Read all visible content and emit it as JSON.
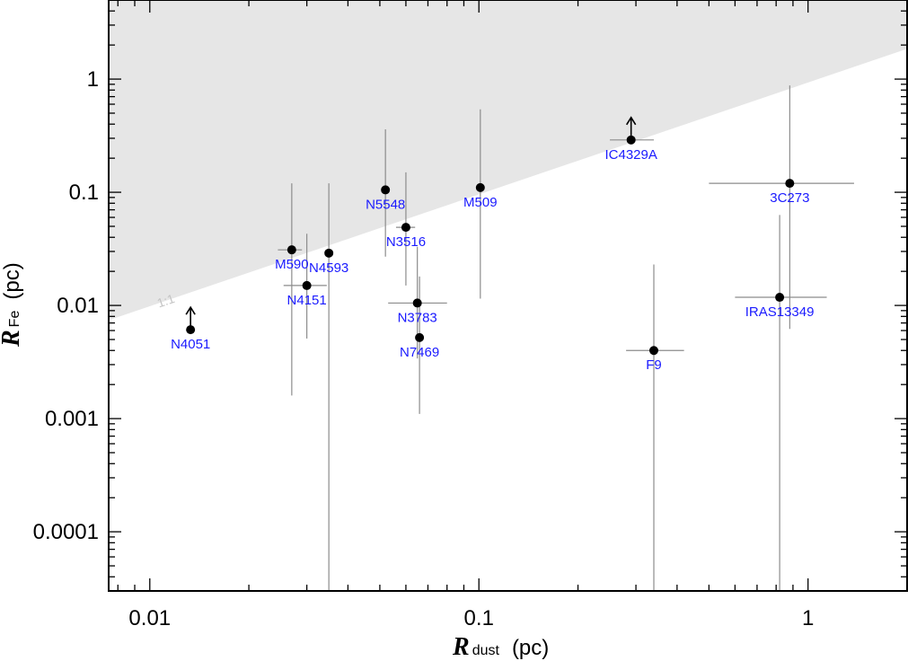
{
  "chart_data": {
    "type": "scatter",
    "x_scale": "log",
    "y_scale": "log",
    "xlim": [
      0.0075,
      2.0
    ],
    "ylim": [
      3e-05,
      5.0
    ],
    "xlabel": {
      "main": "R",
      "sub": "dust",
      "unit": "(pc)"
    },
    "ylabel": {
      "main": "R",
      "sub": "Fe",
      "unit": "(pc)"
    },
    "x_ticks": [
      {
        "value": 0.01,
        "label": "0.01"
      },
      {
        "value": 0.1,
        "label": "0.1"
      },
      {
        "value": 1,
        "label": "1"
      }
    ],
    "y_ticks": [
      {
        "value": 0.0001,
        "label": "0.0001"
      },
      {
        "value": 0.001,
        "label": "0.001"
      },
      {
        "value": 0.01,
        "label": "0.01"
      },
      {
        "value": 0.1,
        "label": "0.1"
      },
      {
        "value": 1,
        "label": "1"
      }
    ],
    "shaded_region": {
      "description_label": "1:1",
      "color": "#e6e6e6",
      "line_label_color": "#c4c4c4"
    },
    "point_color": "#000000",
    "label_color": "#1a1aff",
    "errorbar_color": "#8c8c8c",
    "points": [
      {
        "name": "N4051",
        "x": 0.0133,
        "y": 0.0061,
        "lower_limit": true,
        "x_err": null,
        "y_err": null,
        "label_pos": "below"
      },
      {
        "name": "M590",
        "x": 0.027,
        "y": 0.031,
        "x_err": [
          0.0245,
          0.029
        ],
        "y_err": [
          0.0016,
          0.12
        ],
        "label_pos": "below"
      },
      {
        "name": "N4151",
        "x": 0.03,
        "y": 0.015,
        "x_err": [
          0.0255,
          0.0345
        ],
        "y_err": [
          0.0051,
          0.043
        ],
        "label_pos": "below"
      },
      {
        "name": "N4593",
        "x": 0.035,
        "y": 0.029,
        "x_err": null,
        "y_err": [
          3e-05,
          0.12
        ],
        "label_pos": "below"
      },
      {
        "name": "N5548",
        "x": 0.052,
        "y": 0.105,
        "x_err": null,
        "y_err": [
          0.027,
          0.36
        ],
        "label_pos": "below"
      },
      {
        "name": "N3516",
        "x": 0.06,
        "y": 0.049,
        "x_err": [
          0.056,
          0.064
        ],
        "y_err": [
          0.015,
          0.15
        ],
        "label_pos": "below"
      },
      {
        "name": "N3783",
        "x": 0.065,
        "y": 0.0105,
        "x_err": [
          0.053,
          0.08
        ],
        "y_err": [
          0.0034,
          0.033
        ],
        "label_pos": "below"
      },
      {
        "name": "N7469",
        "x": 0.066,
        "y": 0.0052,
        "x_err": null,
        "y_err": [
          0.0011,
          0.018
        ],
        "label_pos": "below"
      },
      {
        "name": "M509",
        "x": 0.101,
        "y": 0.11,
        "x_err": null,
        "y_err": [
          0.0115,
          0.54
        ],
        "label_pos": "below"
      },
      {
        "name": "IC4329A",
        "x": 0.29,
        "y": 0.29,
        "lower_limit": true,
        "x_err": [
          0.25,
          0.34
        ],
        "y_err": null,
        "label_pos": "below"
      },
      {
        "name": "F9",
        "x": 0.34,
        "y": 0.004,
        "x_err": [
          0.28,
          0.42
        ],
        "y_err": [
          3e-05,
          0.023
        ],
        "label_pos": "below"
      },
      {
        "name": "3C273",
        "x": 0.88,
        "y": 0.12,
        "x_err": [
          0.5,
          1.38
        ],
        "y_err": [
          0.0062,
          0.88
        ],
        "label_pos": "below"
      },
      {
        "name": "IRAS13349",
        "x": 0.82,
        "y": 0.0118,
        "x_err": [
          0.6,
          1.14
        ],
        "y_err": [
          3e-05,
          0.063
        ],
        "label_pos": "below"
      }
    ]
  }
}
